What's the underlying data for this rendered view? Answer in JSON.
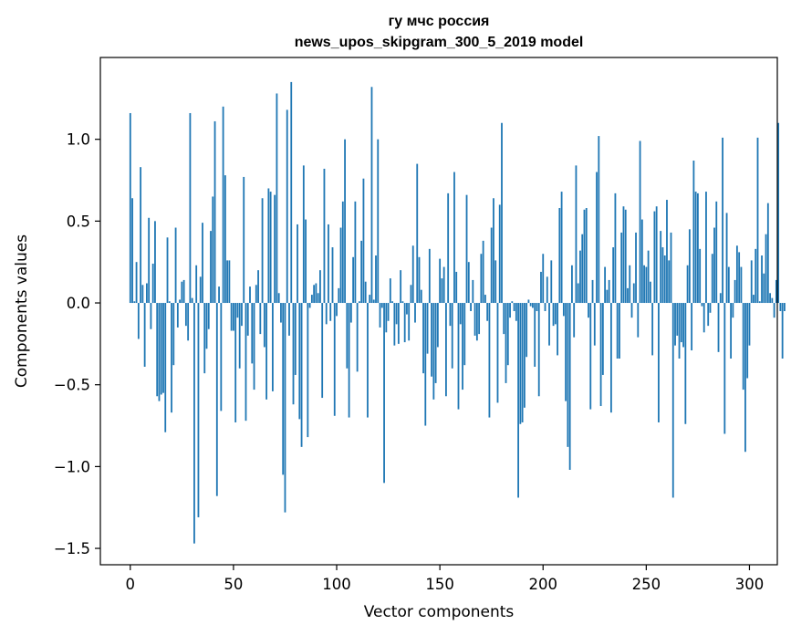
{
  "chart_data": {
    "type": "bar",
    "title_line1": "гу мчс россия",
    "title_line2": "news_upos_skipgram_300_5_2019 model",
    "xlabel": "Vector components",
    "ylabel": "Components values",
    "xlim": [
      -14.5,
      313.5
    ],
    "ylim": [
      -1.6,
      1.5
    ],
    "x_ticks": [
      {
        "value": 0,
        "label": "0"
      },
      {
        "value": 50,
        "label": "50"
      },
      {
        "value": 100,
        "label": "100"
      },
      {
        "value": 150,
        "label": "150"
      },
      {
        "value": 200,
        "label": "200"
      },
      {
        "value": 250,
        "label": "250"
      },
      {
        "value": 300,
        "label": "300"
      }
    ],
    "y_ticks": [
      {
        "value": 1.0,
        "label": "1.0"
      },
      {
        "value": 0.5,
        "label": "0.5"
      },
      {
        "value": 0.0,
        "label": "0.0"
      },
      {
        "value": -0.5,
        "label": "−0.5"
      },
      {
        "value": -1.0,
        "label": "−1.0"
      },
      {
        "value": -1.5,
        "label": "−1.5"
      }
    ],
    "bar_color": "#1f77b4",
    "grid": false,
    "values": [
      1.16,
      0.64,
      0.01,
      0.25,
      -0.22,
      0.83,
      0.11,
      -0.39,
      0.12,
      0.52,
      -0.16,
      0.24,
      0.5,
      -0.57,
      -0.6,
      -0.56,
      -0.55,
      -0.79,
      0.4,
      0.01,
      -0.67,
      -0.38,
      0.46,
      -0.15,
      0.02,
      0.13,
      0.14,
      -0.14,
      -0.23,
      1.16,
      0.03,
      -1.47,
      0.23,
      -1.31,
      0.16,
      0.49,
      -0.43,
      -0.28,
      -0.16,
      0.44,
      0.65,
      1.11,
      -1.18,
      0.1,
      -0.66,
      1.2,
      0.78,
      0.26,
      0.26,
      -0.17,
      -0.17,
      -0.73,
      -0.09,
      -0.4,
      -0.14,
      0.77,
      -0.72,
      -0.2,
      0.1,
      -0.37,
      -0.53,
      0.11,
      0.2,
      -0.19,
      0.64,
      -0.27,
      -0.59,
      0.7,
      0.68,
      -0.54,
      0.66,
      1.28,
      0.06,
      -0.12,
      -1.05,
      -1.28,
      1.18,
      -0.2,
      1.35,
      -0.62,
      -0.44,
      0.48,
      -0.71,
      -0.88,
      0.84,
      0.51,
      -0.82,
      -0.03,
      0.05,
      0.11,
      0.12,
      0.06,
      0.2,
      -0.58,
      0.82,
      -0.13,
      0.48,
      -0.11,
      0.34,
      -0.69,
      -0.08,
      0.09,
      0.46,
      0.62,
      1.0,
      -0.4,
      -0.7,
      -0.12,
      0.28,
      0.62,
      -0.42,
      0.01,
      0.38,
      0.76,
      0.13,
      -0.7,
      0.05,
      1.32,
      0.02,
      0.29,
      1.0,
      -0.15,
      -0.03,
      -1.1,
      -0.18,
      -0.11,
      0.15,
      0.01,
      -0.26,
      -0.13,
      -0.25,
      0.2,
      0.01,
      -0.24,
      -0.07,
      -0.23,
      0.11,
      0.35,
      -0.12,
      0.85,
      0.28,
      0.08,
      -0.43,
      -0.75,
      -0.31,
      0.33,
      -0.45,
      -0.59,
      -0.49,
      -0.27,
      0.27,
      0.15,
      0.22,
      -0.57,
      0.67,
      -0.14,
      -0.4,
      0.8,
      0.19,
      -0.65,
      -0.13,
      -0.53,
      -0.38,
      0.66,
      0.25,
      -0.05,
      0.14,
      -0.2,
      -0.23,
      -0.19,
      0.3,
      0.38,
      0.05,
      -0.11,
      -0.7,
      0.46,
      0.64,
      0.26,
      -0.61,
      0.6,
      1.1,
      -0.19,
      -0.49,
      -0.38,
      -0.09,
      0.01,
      -0.05,
      -0.11,
      -1.19,
      -0.74,
      -0.73,
      -0.64,
      -0.33,
      0.02,
      -0.02,
      -0.03,
      -0.39,
      -0.05,
      -0.57,
      0.19,
      0.3,
      -0.05,
      0.16,
      -0.26,
      0.26,
      -0.14,
      -0.13,
      -0.32,
      0.58,
      0.68,
      -0.08,
      -0.6,
      -0.88,
      -1.02,
      0.23,
      -0.21,
      0.84,
      0.12,
      0.32,
      0.42,
      0.57,
      0.58,
      -0.09,
      -0.65,
      0.14,
      -0.26,
      0.8,
      1.02,
      -0.63,
      -0.44,
      0.22,
      0.08,
      0.14,
      -0.67,
      0.34,
      0.67,
      -0.34,
      -0.34,
      0.43,
      0.59,
      0.57,
      0.09,
      0.23,
      -0.09,
      0.12,
      0.43,
      -0.21,
      0.99,
      0.51,
      0.23,
      0.22,
      0.32,
      0.13,
      -0.32,
      0.56,
      0.59,
      -0.73,
      0.44,
      0.34,
      0.29,
      0.63,
      0.26,
      0.43,
      -1.19,
      -0.26,
      -0.2,
      -0.34,
      -0.24,
      -0.27,
      -0.74,
      0.23,
      0.45,
      -0.29,
      0.87,
      0.68,
      0.67,
      0.33,
      -0.02,
      -0.18,
      0.68,
      -0.14,
      -0.06,
      0.3,
      0.46,
      0.62,
      -0.3,
      0.06,
      1.01,
      -0.8,
      0.55,
      0.22,
      -0.34,
      -0.09,
      0.14,
      0.35,
      0.31,
      0.22,
      -0.53,
      -0.91,
      -0.46,
      -0.26,
      0.26,
      0.05,
      0.33,
      1.01,
      0.01,
      0.29,
      0.18,
      0.42,
      0.61,
      0.06,
      0.03,
      -0.09,
      0.14,
      1.1,
      -0.05,
      -0.34,
      -0.05
    ]
  }
}
